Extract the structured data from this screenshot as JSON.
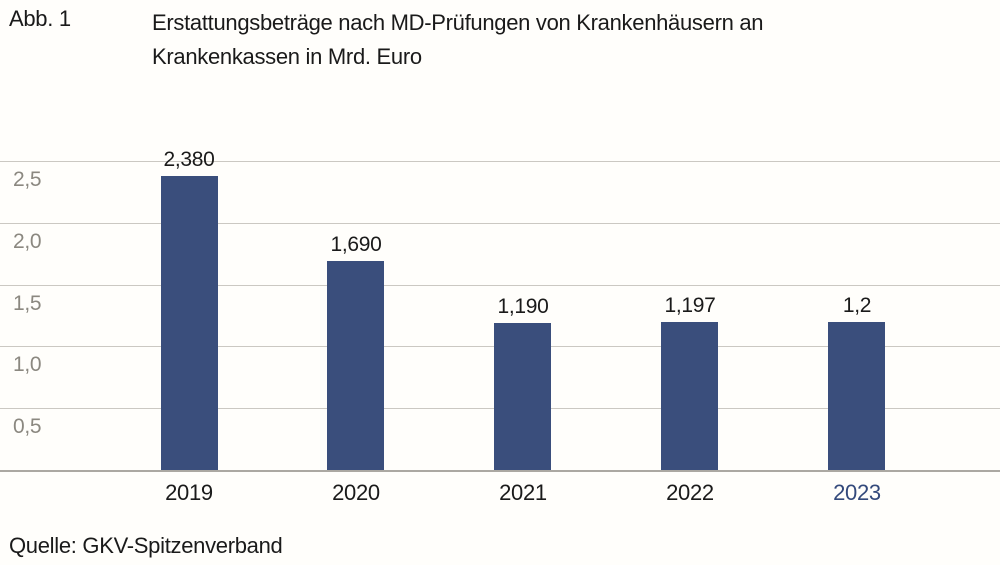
{
  "header": {
    "figure_label": "Abb. 1",
    "title_line1": "Erstattungsbeträge nach MD-Prüfungen von Krankenhäusern an",
    "title_line2": "Krankenkassen in Mrd. Euro"
  },
  "footer": {
    "source": "Quelle: GKV-Spitzenverband"
  },
  "colors": {
    "background": "#FFFEFB",
    "text": "#1A1A1A",
    "bar": "#3A4E7C",
    "highlight_year_text": "#33497B",
    "gridline": "#CBC8C2",
    "axis_line": "#ABA8A2",
    "ytick_text": "#8B8880"
  },
  "chart_data": {
    "type": "bar",
    "title": "Erstattungsbeträge nach MD-Prüfungen von Krankenhäusern an Krankenkassen in Mrd. Euro",
    "unit": "Mrd. Euro",
    "categories": [
      "2019",
      "2020",
      "2021",
      "2022",
      "2023"
    ],
    "values": [
      2.38,
      1.69,
      1.19,
      1.197,
      1.2
    ],
    "value_labels": [
      "2,380",
      "1,690",
      "1,190",
      "1,197",
      "1,2"
    ],
    "yticks": [
      {
        "value": 0.5,
        "label": "0,5"
      },
      {
        "value": 1.0,
        "label": "1,0"
      },
      {
        "value": 1.5,
        "label": "1,5"
      },
      {
        "value": 2.0,
        "label": "2,0"
      },
      {
        "value": 2.5,
        "label": "2,5"
      }
    ],
    "ylim": [
      0,
      2.67
    ],
    "grid": true,
    "highlighted_category": "2023"
  }
}
